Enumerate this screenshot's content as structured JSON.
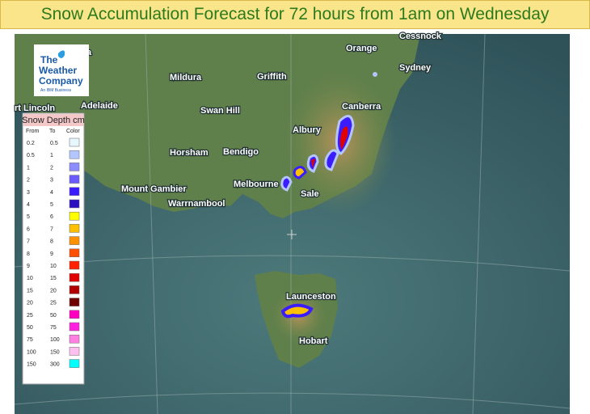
{
  "title": "Snow Accumulation Forecast for 72 hours from 1am on Wednesday",
  "logo": {
    "line1": "The",
    "line2": "Weather",
    "line3": "Company",
    "tagline": "An IBM Business"
  },
  "cities": [
    "Cessnock",
    "Orange",
    "Sydney",
    "Mildura",
    "Griffith",
    "a",
    "Adelaide",
    "rt Lincoln",
    "Swan Hill",
    "Canberra",
    "Albury",
    "Horsham",
    "Bendigo",
    "Mount Gambier",
    "Melbourne",
    "Sale",
    "Warrnambool",
    "Launceston",
    "Hobart"
  ],
  "legend": {
    "title": "Snow Depth cm",
    "headers": [
      "From",
      "To",
      "Color"
    ],
    "rows": [
      {
        "from": 0.2,
        "to": 0.5,
        "color": "#e6f7ff"
      },
      {
        "from": 0.5,
        "to": 1,
        "color": "#b3c6ff"
      },
      {
        "from": 1,
        "to": 2,
        "color": "#8a8cff"
      },
      {
        "from": 2,
        "to": 3,
        "color": "#6a5cff"
      },
      {
        "from": 3,
        "to": 4,
        "color": "#3a1cff"
      },
      {
        "from": 4,
        "to": 5,
        "color": "#2a10c0"
      },
      {
        "from": 5,
        "to": 6,
        "color": "#ffff00"
      },
      {
        "from": 6,
        "to": 7,
        "color": "#ffc000"
      },
      {
        "from": 7,
        "to": 8,
        "color": "#ff9000"
      },
      {
        "from": 8,
        "to": 9,
        "color": "#ff5000"
      },
      {
        "from": 9,
        "to": 10,
        "color": "#ff2000"
      },
      {
        "from": 10,
        "to": 15,
        "color": "#e00000"
      },
      {
        "from": 15,
        "to": 20,
        "color": "#b00000"
      },
      {
        "from": 20,
        "to": 25,
        "color": "#700000"
      },
      {
        "from": 25,
        "to": 50,
        "color": "#ff00c0"
      },
      {
        "from": 50,
        "to": 75,
        "color": "#ff20e0"
      },
      {
        "from": 75,
        "to": 100,
        "color": "#ff80e0"
      },
      {
        "from": 100,
        "to": 150,
        "color": "#ffc0f0"
      },
      {
        "from": 150,
        "to": 300,
        "color": "#00ffff"
      }
    ]
  }
}
